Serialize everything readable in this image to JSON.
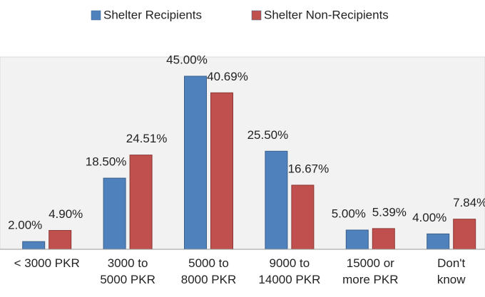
{
  "chart_data": {
    "type": "bar",
    "categories": [
      "< 3000 PKR",
      "3000 to\n5000 PKR",
      "5000 to\n8000 PKR",
      "9000 to\n14000 PKR",
      "15000 or\nmore PKR",
      "Don't\nknow"
    ],
    "series": [
      {
        "name": "Shelter Recipients",
        "color": "#4f81bd",
        "values": [
          2,
          18.5,
          45,
          25.5,
          5,
          4
        ],
        "value_labels": [
          "2.00%",
          "18.50%",
          "45.00%",
          "25.50%",
          "5.00%",
          "4.00%"
        ]
      },
      {
        "name": "Shelter Non-Recipients",
        "color": "#c0504d",
        "values": [
          4.9,
          24.51,
          40.69,
          16.67,
          5.39,
          7.84
        ],
        "value_labels": [
          "4.90%",
          "24.51%",
          "40.69%",
          "16.67%",
          "5.39%",
          "7.84%"
        ]
      }
    ],
    "ylim": [
      0,
      50
    ],
    "legend": "top"
  }
}
